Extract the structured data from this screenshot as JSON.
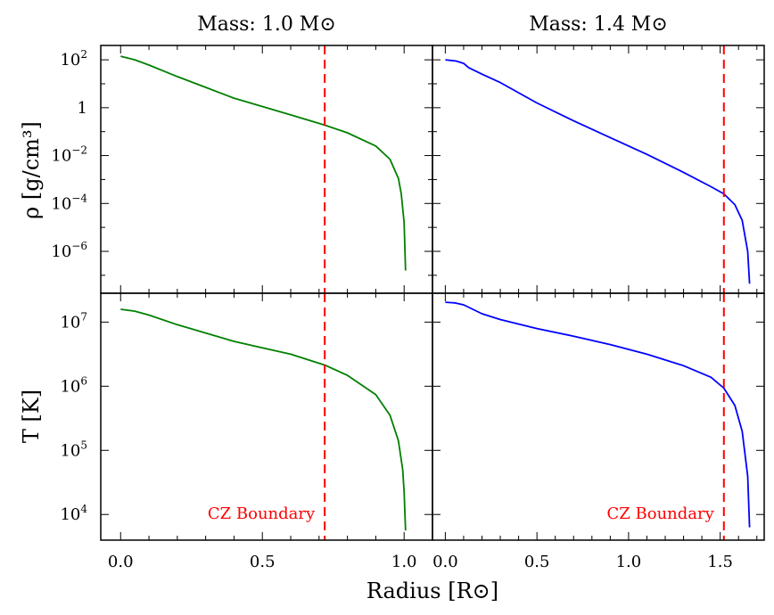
{
  "chart_data": {
    "type": "line",
    "xlabel": "Radius [R⊙]",
    "colors": {
      "green": "#008000",
      "blue": "#0000ff",
      "boundary": "#ff0000"
    },
    "panels": [
      {
        "id": "m10",
        "title": "Mass: 1.0 M⊙",
        "xlim": [
          -0.07,
          1.1
        ],
        "xticks": [
          0.0,
          0.5,
          1.0
        ],
        "xtick_labels": [
          "0.0",
          "0.5",
          "1.0"
        ],
        "cz_boundary_x": 0.72,
        "annotation": "CZ Boundary",
        "line_color": "#008000",
        "density": {
          "x": [
            0.0,
            0.05,
            0.1,
            0.2,
            0.3,
            0.4,
            0.5,
            0.6,
            0.72,
            0.8,
            0.9,
            0.95,
            0.98,
            0.99,
            1.0,
            1.005
          ],
          "log": [
            2.15,
            2.0,
            1.78,
            1.3,
            0.85,
            0.4,
            0.05,
            -0.3,
            -0.73,
            -1.05,
            -1.6,
            -2.15,
            -2.95,
            -3.6,
            -4.8,
            -6.8
          ]
        },
        "temperature": {
          "x": [
            0.0,
            0.05,
            0.1,
            0.2,
            0.3,
            0.4,
            0.5,
            0.6,
            0.72,
            0.8,
            0.9,
            0.95,
            0.98,
            0.995,
            1.0,
            1.005
          ],
          "log": [
            7.2,
            7.17,
            7.11,
            6.96,
            6.83,
            6.7,
            6.6,
            6.5,
            6.33,
            6.17,
            5.87,
            5.55,
            5.15,
            4.7,
            4.35,
            3.75
          ]
        }
      },
      {
        "id": "m14",
        "title": "Mass: 1.4 M⊙",
        "xlim": [
          -0.07,
          1.74
        ],
        "xticks": [
          0.0,
          0.5,
          1.0,
          1.5
        ],
        "xtick_labels": [
          "0.0",
          "0.5",
          "1.0",
          "1.5"
        ],
        "cz_boundary_x": 1.52,
        "annotation": "CZ Boundary",
        "line_color": "#0000ff",
        "density": {
          "x": [
            0.0,
            0.06,
            0.1,
            0.12,
            0.13,
            0.2,
            0.3,
            0.5,
            0.7,
            0.9,
            1.1,
            1.3,
            1.45,
            1.52,
            1.58,
            1.62,
            1.65,
            1.66
          ],
          "log": [
            2.0,
            1.95,
            1.85,
            1.72,
            1.66,
            1.4,
            1.05,
            0.2,
            -0.55,
            -1.25,
            -1.95,
            -2.7,
            -3.3,
            -3.6,
            -4.05,
            -4.7,
            -6.0,
            -7.35
          ]
        },
        "temperature": {
          "x": [
            0.0,
            0.05,
            0.1,
            0.15,
            0.2,
            0.3,
            0.5,
            0.7,
            0.9,
            1.1,
            1.3,
            1.45,
            1.52,
            1.58,
            1.62,
            1.65,
            1.66
          ],
          "log": [
            7.31,
            7.3,
            7.27,
            7.2,
            7.13,
            7.04,
            6.9,
            6.78,
            6.65,
            6.5,
            6.32,
            6.14,
            5.97,
            5.7,
            5.3,
            4.6,
            3.8
          ]
        }
      }
    ],
    "rows": [
      {
        "quantity": "density",
        "ylabel": "ρ [g/cm³]",
        "log_ylim": [
          -7.75,
          2.6
        ],
        "ytick_labels": [
          {
            "v": 2,
            "base": "10",
            "exp": "2"
          },
          {
            "v": 0,
            "base": "1",
            "exp": ""
          },
          {
            "v": -2,
            "base": "10",
            "exp": "−2"
          },
          {
            "v": -4,
            "base": "10",
            "exp": "−4"
          },
          {
            "v": -6,
            "base": "10",
            "exp": "−6"
          }
        ]
      },
      {
        "quantity": "temperature",
        "ylabel": "T [K]",
        "log_ylim": [
          3.6,
          7.45
        ],
        "ytick_labels": [
          {
            "v": 7,
            "base": "10",
            "exp": "7"
          },
          {
            "v": 6,
            "base": "10",
            "exp": "6"
          },
          {
            "v": 5,
            "base": "10",
            "exp": "5"
          },
          {
            "v": 4,
            "base": "10",
            "exp": "4"
          }
        ]
      }
    ]
  }
}
